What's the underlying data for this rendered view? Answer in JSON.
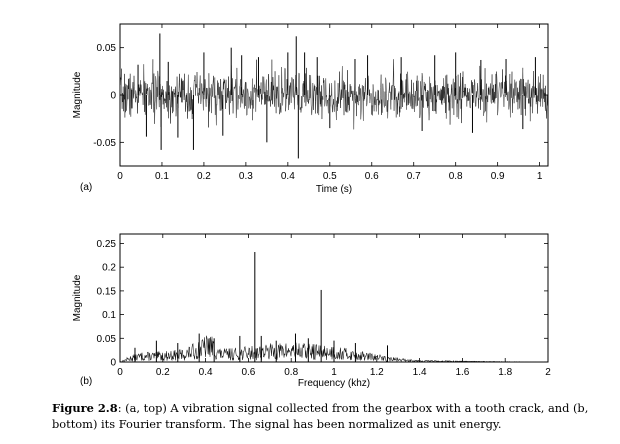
{
  "chart_data": [
    {
      "type": "line",
      "panel_label": "(a)",
      "xlabel": "Time (s)",
      "ylabel": "Magnitude",
      "xlim": [
        0,
        1.02
      ],
      "ylim": [
        -0.075,
        0.075
      ],
      "xticks": [
        "0",
        "0.1",
        "0.2",
        "0.3",
        "0.4",
        "0.5",
        "0.6",
        "0.7",
        "0.8",
        "0.9",
        "1"
      ],
      "yticks": [
        "0.05",
        "0",
        "-0.05"
      ],
      "noise_band": 0.022,
      "peaks": [
        {
          "x": 0.043,
          "y": 0.032
        },
        {
          "x": 0.063,
          "y": -0.044
        },
        {
          "x": 0.095,
          "y": 0.065
        },
        {
          "x": 0.098,
          "y": -0.058
        },
        {
          "x": 0.115,
          "y": 0.035
        },
        {
          "x": 0.138,
          "y": -0.045
        },
        {
          "x": 0.175,
          "y": -0.058
        },
        {
          "x": 0.2,
          "y": 0.045
        },
        {
          "x": 0.245,
          "y": -0.043
        },
        {
          "x": 0.265,
          "y": 0.05
        },
        {
          "x": 0.29,
          "y": 0.042
        },
        {
          "x": 0.33,
          "y": 0.04
        },
        {
          "x": 0.35,
          "y": -0.05
        },
        {
          "x": 0.4,
          "y": 0.045
        },
        {
          "x": 0.42,
          "y": 0.062
        },
        {
          "x": 0.425,
          "y": -0.067
        },
        {
          "x": 0.44,
          "y": 0.045
        },
        {
          "x": 0.47,
          "y": 0.04
        },
        {
          "x": 0.5,
          "y": -0.035
        },
        {
          "x": 0.56,
          "y": 0.038
        },
        {
          "x": 0.59,
          "y": 0.042
        },
        {
          "x": 0.67,
          "y": 0.04
        },
        {
          "x": 0.72,
          "y": -0.038
        },
        {
          "x": 0.75,
          "y": 0.042
        },
        {
          "x": 0.8,
          "y": 0.045
        },
        {
          "x": 0.84,
          "y": -0.04
        },
        {
          "x": 0.86,
          "y": 0.037
        },
        {
          "x": 0.92,
          "y": 0.038
        },
        {
          "x": 0.96,
          "y": -0.036
        },
        {
          "x": 0.99,
          "y": 0.04
        }
      ]
    },
    {
      "type": "line",
      "panel_label": "(b)",
      "xlabel": "Frequency (khz)",
      "ylabel": "Magnitude",
      "xlim": [
        0,
        2
      ],
      "ylim": [
        0,
        0.27
      ],
      "xticks": [
        "0",
        "0.2",
        "0.4",
        "0.6",
        "0.8",
        "1",
        "1.2",
        "1.4",
        "1.6",
        "1.8",
        "2"
      ],
      "yticks": [
        "0.25",
        "0.2",
        "0.15",
        "0.1",
        "0.05",
        "0"
      ],
      "envelope": [
        {
          "x": 0.0,
          "y": 0.0
        },
        {
          "x": 0.05,
          "y": 0.01
        },
        {
          "x": 0.1,
          "y": 0.015
        },
        {
          "x": 0.2,
          "y": 0.016
        },
        {
          "x": 0.3,
          "y": 0.02
        },
        {
          "x": 0.38,
          "y": 0.035
        },
        {
          "x": 0.42,
          "y": 0.045
        },
        {
          "x": 0.47,
          "y": 0.02
        },
        {
          "x": 0.55,
          "y": 0.022
        },
        {
          "x": 0.7,
          "y": 0.028
        },
        {
          "x": 0.8,
          "y": 0.03
        },
        {
          "x": 0.9,
          "y": 0.028
        },
        {
          "x": 1.0,
          "y": 0.025
        },
        {
          "x": 1.1,
          "y": 0.018
        },
        {
          "x": 1.2,
          "y": 0.012
        },
        {
          "x": 1.3,
          "y": 0.006
        },
        {
          "x": 1.4,
          "y": 0.003
        },
        {
          "x": 1.6,
          "y": 0.0015
        },
        {
          "x": 2.0,
          "y": 0.0
        }
      ],
      "peaks": [
        {
          "x": 0.07,
          "y": 0.03
        },
        {
          "x": 0.17,
          "y": 0.045
        },
        {
          "x": 0.27,
          "y": 0.04
        },
        {
          "x": 0.37,
          "y": 0.06
        },
        {
          "x": 0.44,
          "y": 0.05
        },
        {
          "x": 0.56,
          "y": 0.055
        },
        {
          "x": 0.63,
          "y": 0.232
        },
        {
          "x": 0.66,
          "y": 0.055
        },
        {
          "x": 0.73,
          "y": 0.045
        },
        {
          "x": 0.82,
          "y": 0.06
        },
        {
          "x": 0.88,
          "y": 0.05
        },
        {
          "x": 0.94,
          "y": 0.152
        },
        {
          "x": 1.0,
          "y": 0.045
        },
        {
          "x": 1.1,
          "y": 0.04
        },
        {
          "x": 1.25,
          "y": 0.035
        }
      ]
    }
  ],
  "caption": {
    "label": "Figure 2.8",
    "text": ": (a, top) A vibration signal collected from the gearbox with a tooth crack, and (b, bottom) its Fourier transform. The signal has been normalized as unit energy."
  }
}
